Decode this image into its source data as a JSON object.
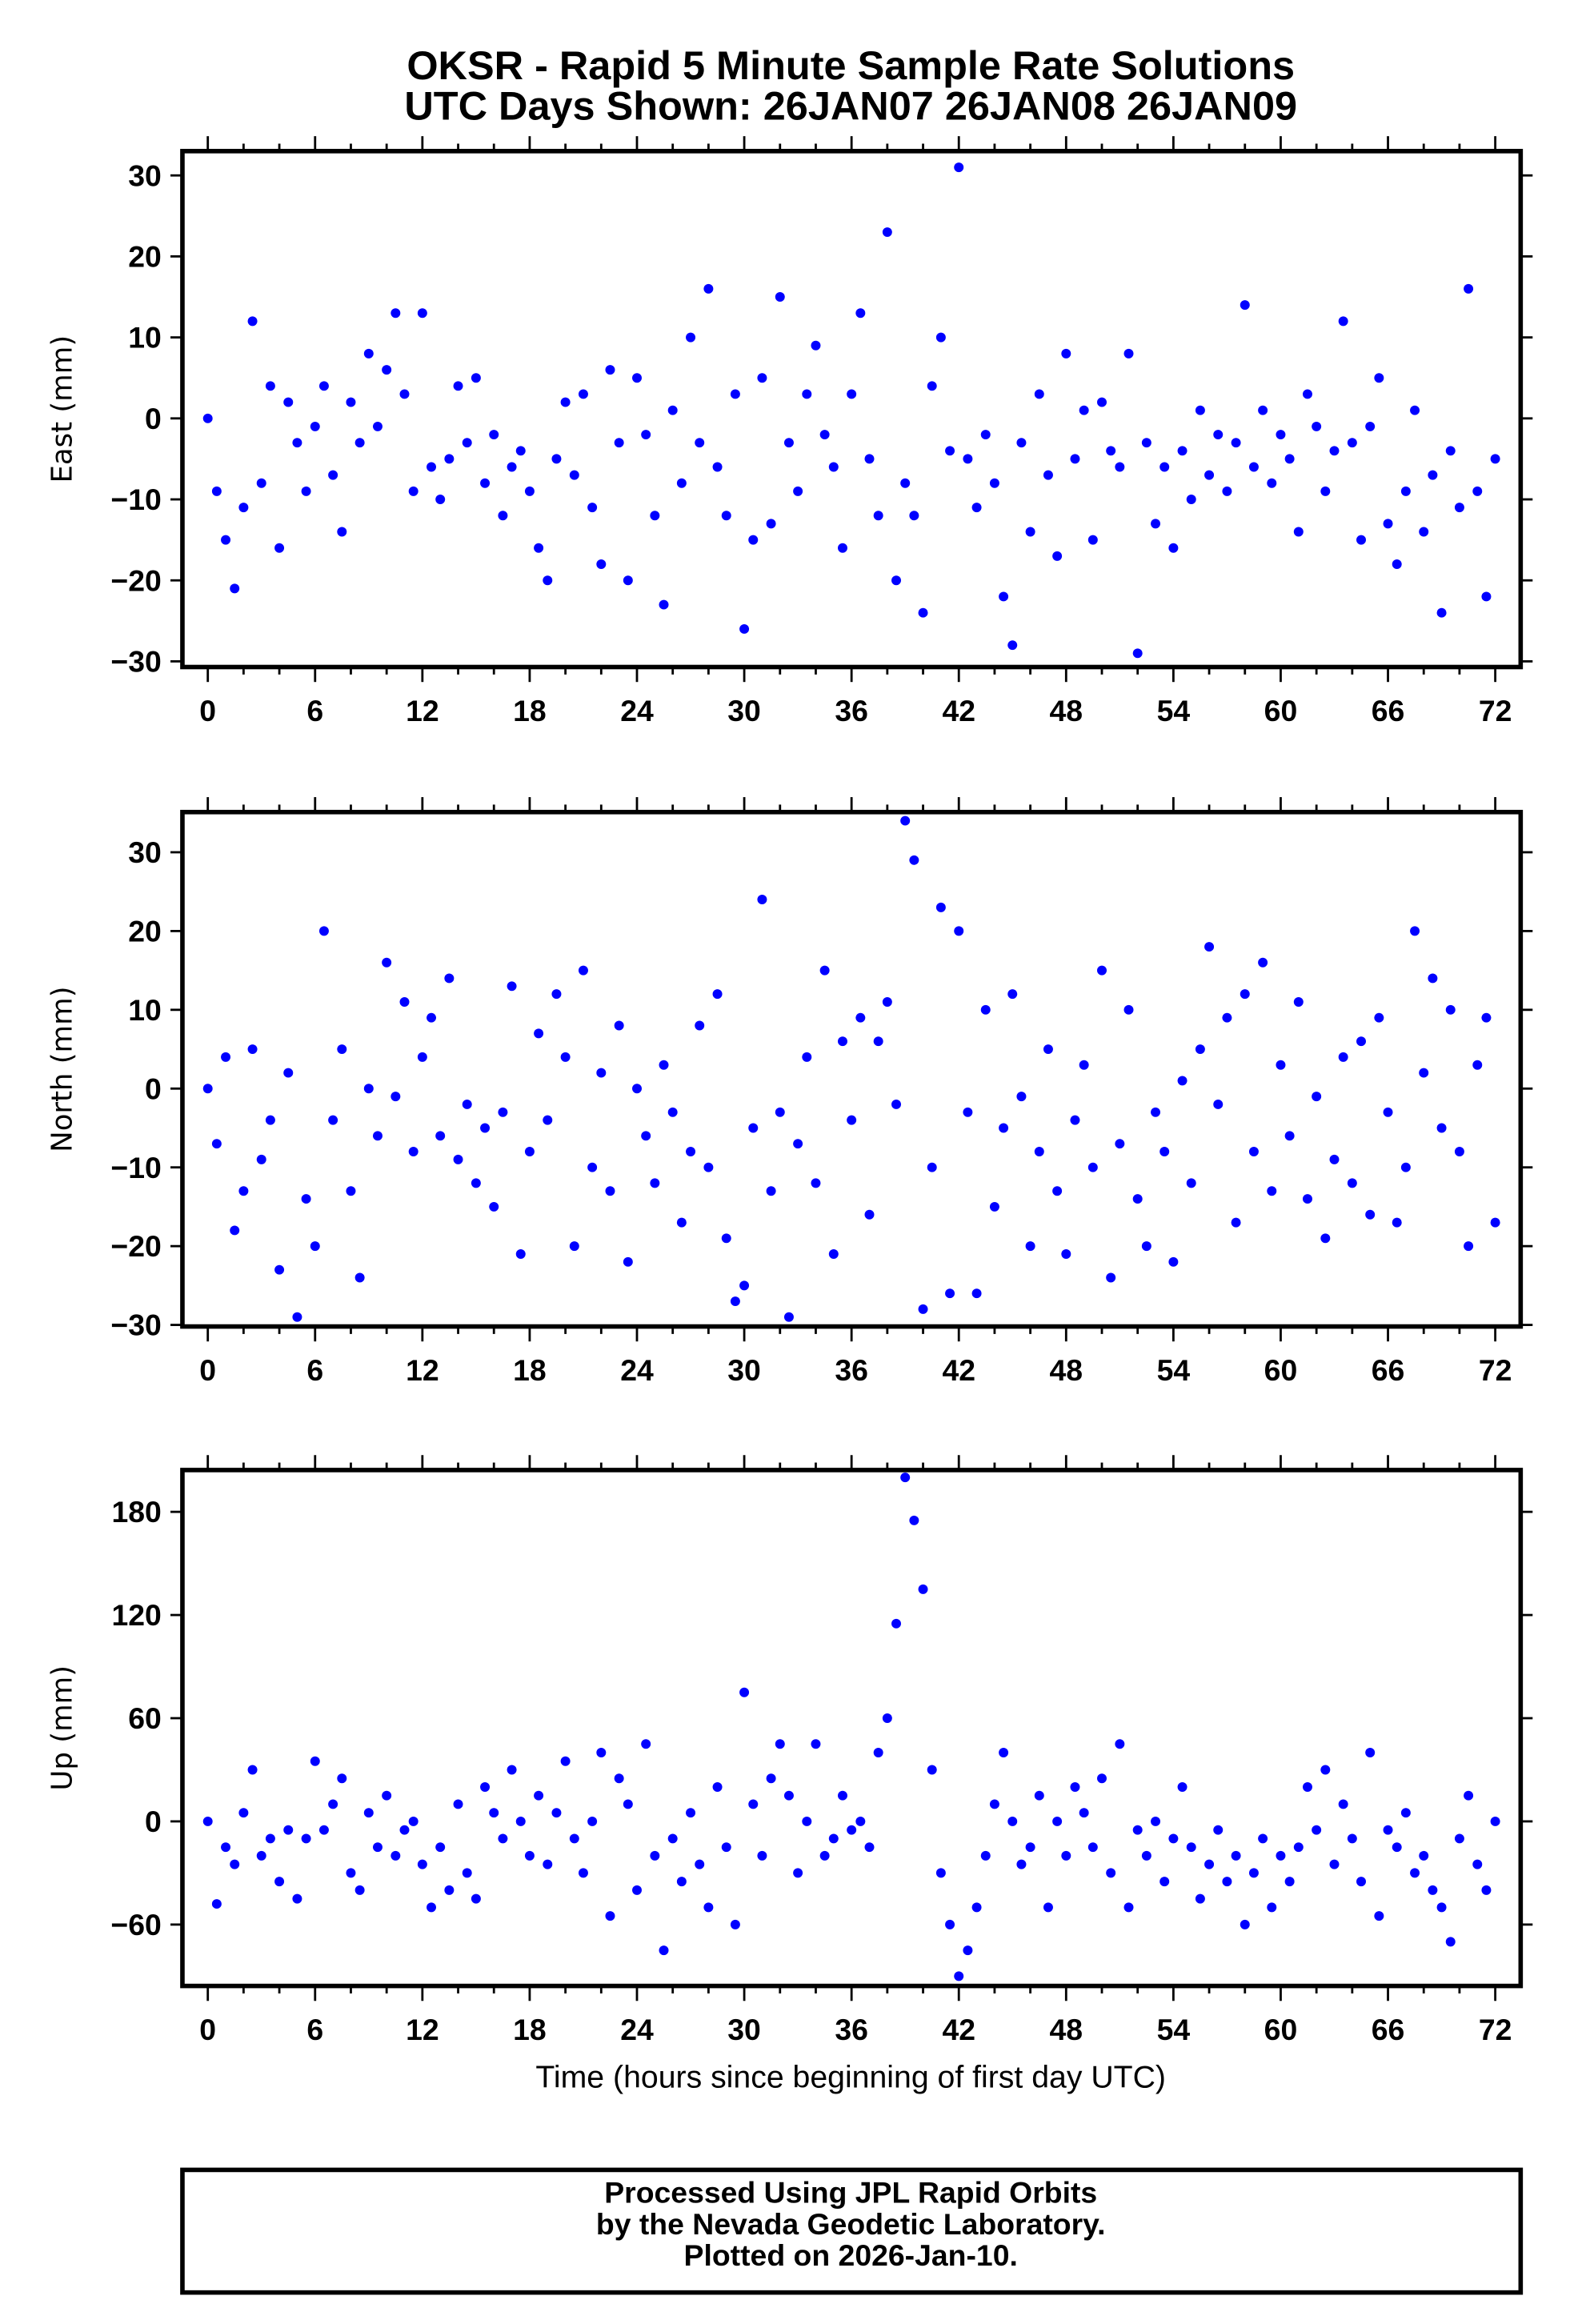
{
  "title": {
    "line1": "OKSR - Rapid 5 Minute Sample Rate Solutions",
    "line2": "UTC Days Shown:  26JAN07 26JAN08 26JAN09"
  },
  "xlabel": "Time (hours since beginning of first day UTC)",
  "footer": {
    "line1": "Processed Using JPL Rapid Orbits",
    "line2": "by the Nevada Geodetic Laboratory.",
    "line3": "Plotted on 2026-Jan-10."
  },
  "colors": {
    "points": "#0000ff",
    "axes": "#000000"
  },
  "chart_data": [
    {
      "type": "scatter",
      "ylabel": "East (mm)",
      "xlim": [
        -1.42,
        73.42
      ],
      "ylim": [
        -30.7,
        33
      ],
      "xticks": [
        0,
        6,
        12,
        18,
        24,
        30,
        36,
        42,
        48,
        54,
        60,
        66,
        72
      ],
      "yticks": [
        -30,
        -20,
        -10,
        0,
        10,
        20,
        30
      ],
      "x_start": 0,
      "x_step": 0.5,
      "values": [
        0,
        -9,
        -15,
        -21,
        -11,
        12,
        -8,
        4,
        -16,
        2,
        -3,
        -9,
        -1,
        4,
        -7,
        -14,
        2,
        -3,
        8,
        -1,
        6,
        13,
        3,
        -9,
        13,
        -6,
        -10,
        -5,
        4,
        -3,
        5,
        -8,
        -2,
        -12,
        -6,
        -4,
        -9,
        -16,
        -20,
        -5,
        2,
        -7,
        3,
        -11,
        -18,
        6,
        -3,
        -20,
        5,
        -2,
        -12,
        -23,
        1,
        -8,
        10,
        -3,
        16,
        -6,
        -12,
        3,
        -26,
        -15,
        5,
        -13,
        15,
        -3,
        -9,
        3,
        9,
        -2,
        -6,
        -16,
        3,
        13,
        -5,
        -12,
        23,
        -20,
        -8,
        -12,
        -24,
        4,
        10,
        -4,
        31,
        -5,
        -11,
        -2,
        -8,
        -22,
        -28,
        -3,
        -14,
        3,
        -7,
        -17,
        8,
        -5,
        1,
        -15,
        2,
        -4,
        -6,
        8,
        -29,
        -3,
        -13,
        -6,
        -16,
        -4,
        -10,
        1,
        -7,
        -2,
        -9,
        -3,
        14,
        -6,
        1,
        -8,
        -2,
        -5,
        -14,
        3,
        -1,
        -9,
        -4,
        12,
        -3,
        -15,
        -1,
        5,
        -13,
        -18,
        -9,
        1,
        -14,
        -7,
        -24,
        -4,
        -11,
        16,
        -9,
        -22,
        -5
      ]
    },
    {
      "type": "scatter",
      "ylabel": "North (mm)",
      "xlim": [
        -1.42,
        73.42
      ],
      "ylim": [
        -30.2,
        35.1
      ],
      "xticks": [
        0,
        6,
        12,
        18,
        24,
        30,
        36,
        42,
        48,
        54,
        60,
        66,
        72
      ],
      "yticks": [
        -30,
        -20,
        -10,
        0,
        10,
        20,
        30
      ],
      "x_start": 0,
      "x_step": 0.5,
      "values": [
        0,
        -7,
        4,
        -18,
        -13,
        5,
        -9,
        -4,
        -23,
        2,
        -29,
        -14,
        -20,
        20,
        -4,
        5,
        -13,
        -24,
        0,
        -6,
        16,
        -1,
        11,
        -8,
        4,
        9,
        -6,
        14,
        -9,
        -2,
        -12,
        -5,
        -15,
        -3,
        13,
        -21,
        -8,
        7,
        -4,
        12,
        4,
        -20,
        15,
        -10,
        2,
        -13,
        8,
        -22,
        0,
        -6,
        -12,
        3,
        -3,
        -17,
        -8,
        8,
        -10,
        12,
        -19,
        -27,
        -25,
        -5,
        24,
        -13,
        -3,
        -29,
        -7,
        4,
        -12,
        15,
        -21,
        6,
        -4,
        9,
        -16,
        6,
        11,
        -2,
        34,
        29,
        -28,
        -10,
        23,
        -26,
        20,
        -3,
        -26,
        10,
        -15,
        -5,
        12,
        -1,
        -20,
        -8,
        5,
        -13,
        -21,
        -4,
        3,
        -10,
        15,
        -24,
        -7,
        10,
        -14,
        -20,
        -3,
        -8,
        -22,
        1,
        -12,
        5,
        18,
        -2,
        9,
        -17,
        12,
        -8,
        16,
        -13,
        3,
        -6,
        11,
        -14,
        -1,
        -19,
        -9,
        4,
        -12,
        6,
        -16,
        9,
        -3,
        -17,
        -10,
        20,
        2,
        14,
        -5,
        10,
        -8,
        -20,
        3,
        9,
        -17
      ]
    },
    {
      "type": "scatter",
      "ylabel": "Up (mm)",
      "xlim": [
        -1.42,
        73.42
      ],
      "ylim": [
        -95.7,
        204.3
      ],
      "xticks": [
        0,
        6,
        12,
        18,
        24,
        30,
        36,
        42,
        48,
        54,
        60,
        66,
        72
      ],
      "yticks": [
        -60,
        0,
        60,
        120,
        180
      ],
      "x_start": 0,
      "x_step": 0.5,
      "values": [
        0,
        -48,
        -15,
        -25,
        5,
        30,
        -20,
        -10,
        -35,
        -5,
        -45,
        -10,
        35,
        -5,
        10,
        25,
        -30,
        -40,
        5,
        -15,
        15,
        -20,
        -5,
        0,
        -25,
        -50,
        -15,
        -40,
        10,
        -30,
        -45,
        20,
        5,
        -10,
        30,
        0,
        -20,
        15,
        -25,
        5,
        35,
        -10,
        -30,
        0,
        40,
        -55,
        25,
        10,
        -40,
        45,
        -20,
        -75,
        -10,
        -35,
        5,
        -25,
        -50,
        20,
        -15,
        -60,
        75,
        10,
        -20,
        25,
        45,
        15,
        -30,
        0,
        45,
        -20,
        -10,
        15,
        -5,
        0,
        -15,
        40,
        60,
        115,
        200,
        175,
        135,
        30,
        -30,
        -60,
        -90,
        -75,
        -50,
        -20,
        10,
        40,
        0,
        -25,
        -15,
        15,
        -50,
        0,
        -20,
        20,
        5,
        -15,
        25,
        -30,
        45,
        -50,
        -5,
        -20,
        0,
        -35,
        -10,
        20,
        -15,
        -45,
        -25,
        -5,
        -35,
        -20,
        -60,
        -30,
        -10,
        -50,
        -20,
        -35,
        -15,
        20,
        -5,
        30,
        -25,
        10,
        -10,
        -35,
        40,
        -55,
        -5,
        -15,
        5,
        -30,
        -20,
        -40,
        -50,
        -70,
        -10,
        15,
        -25,
        -40,
        0
      ]
    }
  ]
}
